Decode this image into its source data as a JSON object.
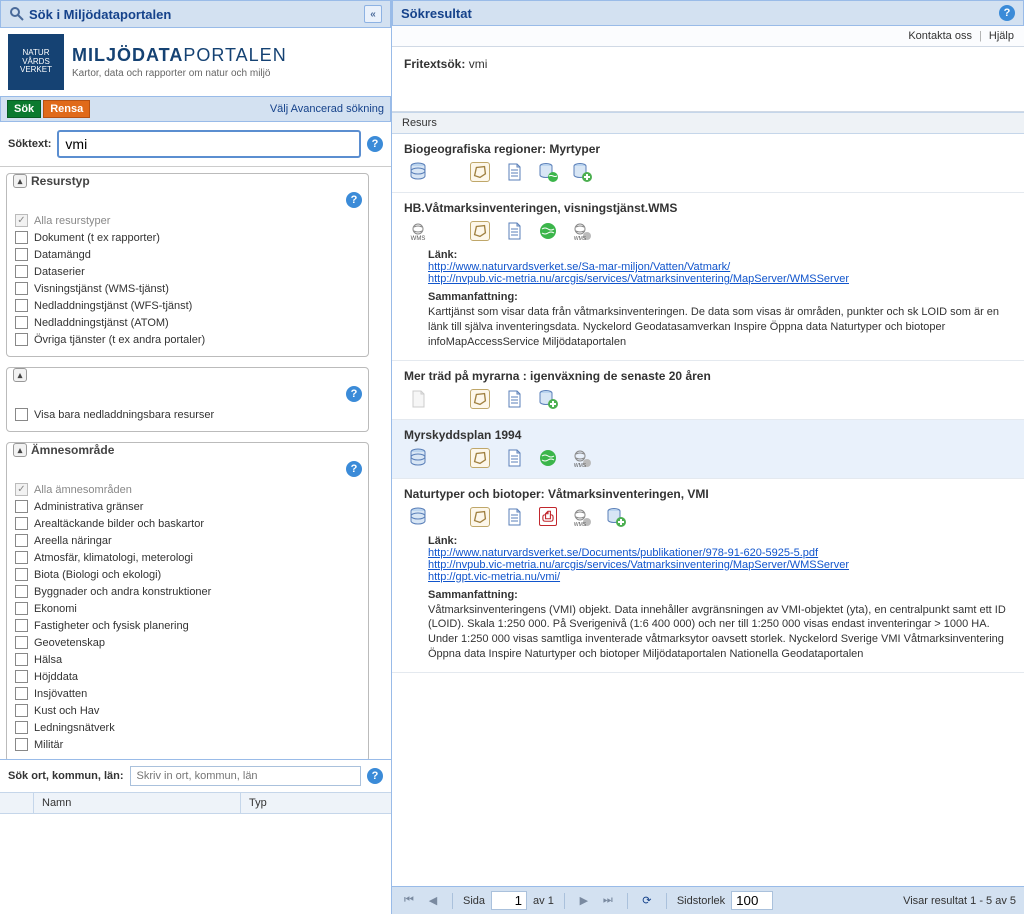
{
  "left": {
    "title": "Sök i Miljödataportalen",
    "collapse_glyph": "«",
    "logo": {
      "badge_line1": "NATUR",
      "badge_line2": "VÅRDS",
      "badge_line3": "VERKET",
      "title_bold": "MILJÖDATA",
      "title_rest": "PORTALEN",
      "sub": "Kartor, data och rapporter om natur och miljö"
    },
    "toolbar": {
      "sok": "Sök",
      "rensa": "Rensa",
      "advanced": "Välj Avancerad sökning"
    },
    "soktext_label": "Söktext:",
    "soktext_value": "vmi",
    "facets": {
      "resurstyp": {
        "title": "Resurstyp",
        "all": "Alla resurstyper",
        "items": [
          "Dokument (t ex rapporter)",
          "Datamängd",
          "Dataserier",
          "Visningstjänst (WMS-tjänst)",
          "Nedladdningstjänst (WFS-tjänst)",
          "Nedladdningstjänst (ATOM)",
          "Övriga tjänster (t ex andra portaler)"
        ]
      },
      "downloadable": {
        "label": "Visa bara nedladdningsbara resurser"
      },
      "amne": {
        "title": "Ämnesområde",
        "all": "Alla ämnesområden",
        "items": [
          "Administrativa gränser",
          "Arealtäckande bilder och baskartor",
          "Areella näringar",
          "Atmosfär, klimatologi, meterologi",
          "Biota (Biologi och ekologi)",
          "Byggnader och andra konstruktioner",
          "Ekonomi",
          "Fastigheter och fysisk planering",
          "Geovetenskap",
          "Hälsa",
          "Höjddata",
          "Insjövatten",
          "Kust och Hav",
          "Ledningsnätverk",
          "Militär"
        ]
      }
    },
    "place": {
      "label": "Sök ort, kommun, län:",
      "placeholder": "Skriv in ort, kommun, län",
      "col_namn": "Namn",
      "col_typ": "Typ"
    }
  },
  "right": {
    "title": "Sökresultat",
    "kontakta": "Kontakta oss",
    "hjalp": "Hjälp",
    "freetext_label": "Fritextsök:",
    "freetext_value": "vmi",
    "resurs_col": "Resurs",
    "results": [
      {
        "title": "Biogeografiska regioner: Myrtyper",
        "icons": [
          "db",
          "poly",
          "page",
          "dbglobe",
          "dbplus"
        ]
      },
      {
        "title": "HB.Våtmarksinventeringen, visningstjänst.WMS",
        "icons": [
          "wms",
          "poly",
          "page",
          "globe",
          "wmsglobe"
        ],
        "link_label": "Länk:",
        "links": [
          "http://www.naturvardsverket.se/Sa-mar-miljon/Vatten/Vatmark/",
          "http://nvpub.vic-metria.nu/arcgis/services/Vatmarksinventering/MapServer/WMSServer"
        ],
        "summary_label": "Sammanfattning:",
        "summary": "Karttjänst som visar data från våtmarksinventeringen. De data som visas är områden, punkter och sk LOID som är en länk till själva inventeringsdata. Nyckelord Geodatasamverkan Inspire Öppna data Naturtyper och biotoper infoMapAccessService Miljödataportalen"
      },
      {
        "title": "Mer träd på myrarna : igenväxning de senaste 20 åren",
        "icons": [
          "pageblank",
          "poly",
          "page",
          "dbplus"
        ]
      },
      {
        "title": "Myrskyddsplan 1994",
        "icons": [
          "db",
          "poly",
          "page",
          "globe",
          "wmsglobe"
        ],
        "selected": true
      },
      {
        "title": "Naturtyper och biotoper: Våtmarksinventeringen, VMI",
        "icons": [
          "db",
          "poly",
          "page",
          "pdf",
          "wmsglobe",
          "dbplus"
        ],
        "link_label": "Länk:",
        "links": [
          "http://www.naturvardsverket.se/Documents/publikationer/978-91-620-5925-5.pdf",
          "http://nvpub.vic-metria.nu/arcgis/services/Vatmarksinventering/MapServer/WMSServer",
          "http://gpt.vic-metria.nu/vmi/"
        ],
        "summary_label": "Sammanfattning:",
        "summary": "Våtmarksinventeringens (VMI) objekt. Data innehåller avgränsningen av VMI-objektet (yta), en centralpunkt samt ett ID (LOID). Skala 1:250 000. På Sverigenivå (1:6 400 000) och ner till 1:250 000 visas endast inventeringar > 1000 HA. Under 1:250 000 visas samtliga inventerade våtmarksytor oavsett storlek. Nyckelord Sverige VMI Våtmarksinventering Öppna data Inspire Naturtyper och biotoper Miljödataportalen Nationella Geodataportalen"
      }
    ],
    "paging": {
      "sida": "Sida",
      "page": "1",
      "av": "av 1",
      "sidstorlek_label": "Sidstorlek",
      "sidstorlek_value": "100",
      "status": "Visar resultat 1 - 5 av 5"
    }
  }
}
